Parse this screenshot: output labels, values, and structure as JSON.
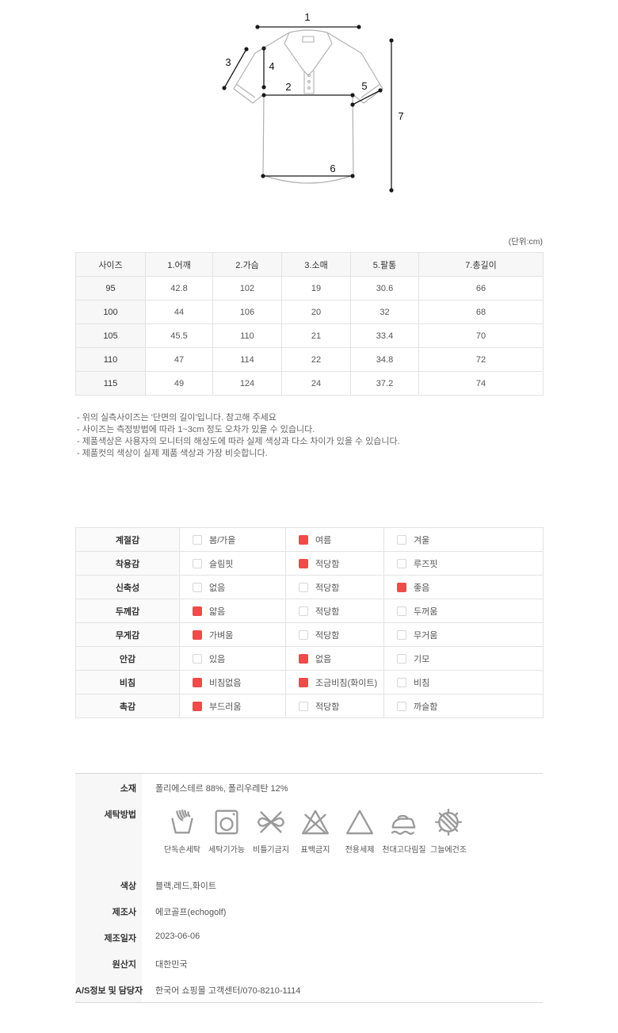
{
  "unit_label": "(단위:cm)",
  "diagram": {
    "labels": [
      "1",
      "2",
      "3",
      "4",
      "5",
      "6",
      "7"
    ]
  },
  "size_table": {
    "headers": [
      "사이즈",
      "1.어깨",
      "2.가슴",
      "3.소매",
      "5.팔통",
      "7.총길이"
    ],
    "rows": [
      [
        "95",
        "42.8",
        "102",
        "19",
        "30.6",
        "66"
      ],
      [
        "100",
        "44",
        "106",
        "20",
        "32",
        "68"
      ],
      [
        "105",
        "45.5",
        "110",
        "21",
        "33.4",
        "70"
      ],
      [
        "110",
        "47",
        "114",
        "22",
        "34.8",
        "72"
      ],
      [
        "115",
        "49",
        "124",
        "24",
        "37.2",
        "74"
      ]
    ]
  },
  "notes": [
    "- 위의 실측사이즈는 '단면의 길이'입니다. 참고해 주세요",
    "- 사이즈는 측정방법에 따라 1~3cm 정도 오차가 있을 수 있습니다.",
    "- 제품색상은 사용자의 모니터의 해상도에 따라 실제 색상과 다소 차이가 있을 수 있습니다.",
    "- 제품컷의 색상이 실제 제품 색상과 가장 비슷합니다."
  ],
  "attributes": {
    "rows": [
      {
        "label": "계절감",
        "options": [
          {
            "text": "봄/가을",
            "checked": false
          },
          {
            "text": "여름",
            "checked": true
          },
          {
            "text": "겨울",
            "checked": false
          }
        ]
      },
      {
        "label": "착용감",
        "options": [
          {
            "text": "슬림핏",
            "checked": false
          },
          {
            "text": "적당함",
            "checked": true
          },
          {
            "text": "루즈핏",
            "checked": false
          }
        ]
      },
      {
        "label": "신축성",
        "options": [
          {
            "text": "없음",
            "checked": false
          },
          {
            "text": "적당함",
            "checked": false
          },
          {
            "text": "좋음",
            "checked": true
          }
        ]
      },
      {
        "label": "두께감",
        "options": [
          {
            "text": "얇음",
            "checked": true
          },
          {
            "text": "적당함",
            "checked": false
          },
          {
            "text": "두꺼움",
            "checked": false
          }
        ]
      },
      {
        "label": "무게감",
        "options": [
          {
            "text": "가벼움",
            "checked": true
          },
          {
            "text": "적당함",
            "checked": false
          },
          {
            "text": "무거움",
            "checked": false
          }
        ]
      },
      {
        "label": "안감",
        "options": [
          {
            "text": "있음",
            "checked": false
          },
          {
            "text": "없음",
            "checked": true
          },
          {
            "text": "기모",
            "checked": false
          }
        ]
      },
      {
        "label": "비침",
        "options": [
          {
            "text": "비침없음",
            "checked": true
          },
          {
            "text": "조금비침(화이트)",
            "checked": true
          },
          {
            "text": "비침",
            "checked": false
          }
        ]
      },
      {
        "label": "촉감",
        "options": [
          {
            "text": "부드러움",
            "checked": true
          },
          {
            "text": "적당함",
            "checked": false
          },
          {
            "text": "까슬함",
            "checked": false
          }
        ]
      }
    ]
  },
  "info": {
    "rows": [
      {
        "label": "소재",
        "value": "폴리에스테르 88%, 폴리우레탄 12%"
      },
      {
        "label": "세탁방법",
        "icons": [
          {
            "name": "hand-wash-icon",
            "label": "단독손세탁"
          },
          {
            "name": "machine-wash-icon",
            "label": "세탁기가능"
          },
          {
            "name": "no-wring-icon",
            "label": "비틀기금지"
          },
          {
            "name": "no-bleach-icon",
            "label": "표백금지"
          },
          {
            "name": "detergent-icon",
            "label": "전용세제"
          },
          {
            "name": "iron-cloth-icon",
            "label": "천대고다림질"
          },
          {
            "name": "shade-dry-icon",
            "label": "그늘에건조"
          }
        ]
      },
      {
        "label": "색상",
        "value": "블랙,레드,화이트"
      },
      {
        "label": "제조사",
        "value": "에코골프(echogolf)"
      },
      {
        "label": "제조일자",
        "value": "2023-06-06"
      },
      {
        "label": "원산지",
        "value": "대한민국"
      },
      {
        "label": "A/S정보 및 담당자",
        "value": "한국어 쇼핑몰 고객센터/070-8210-1114"
      }
    ]
  },
  "colors": {
    "checked_box": "#ee4b4b",
    "table_border": "#e3e3e6",
    "label_bg": "#f7f7f8"
  }
}
